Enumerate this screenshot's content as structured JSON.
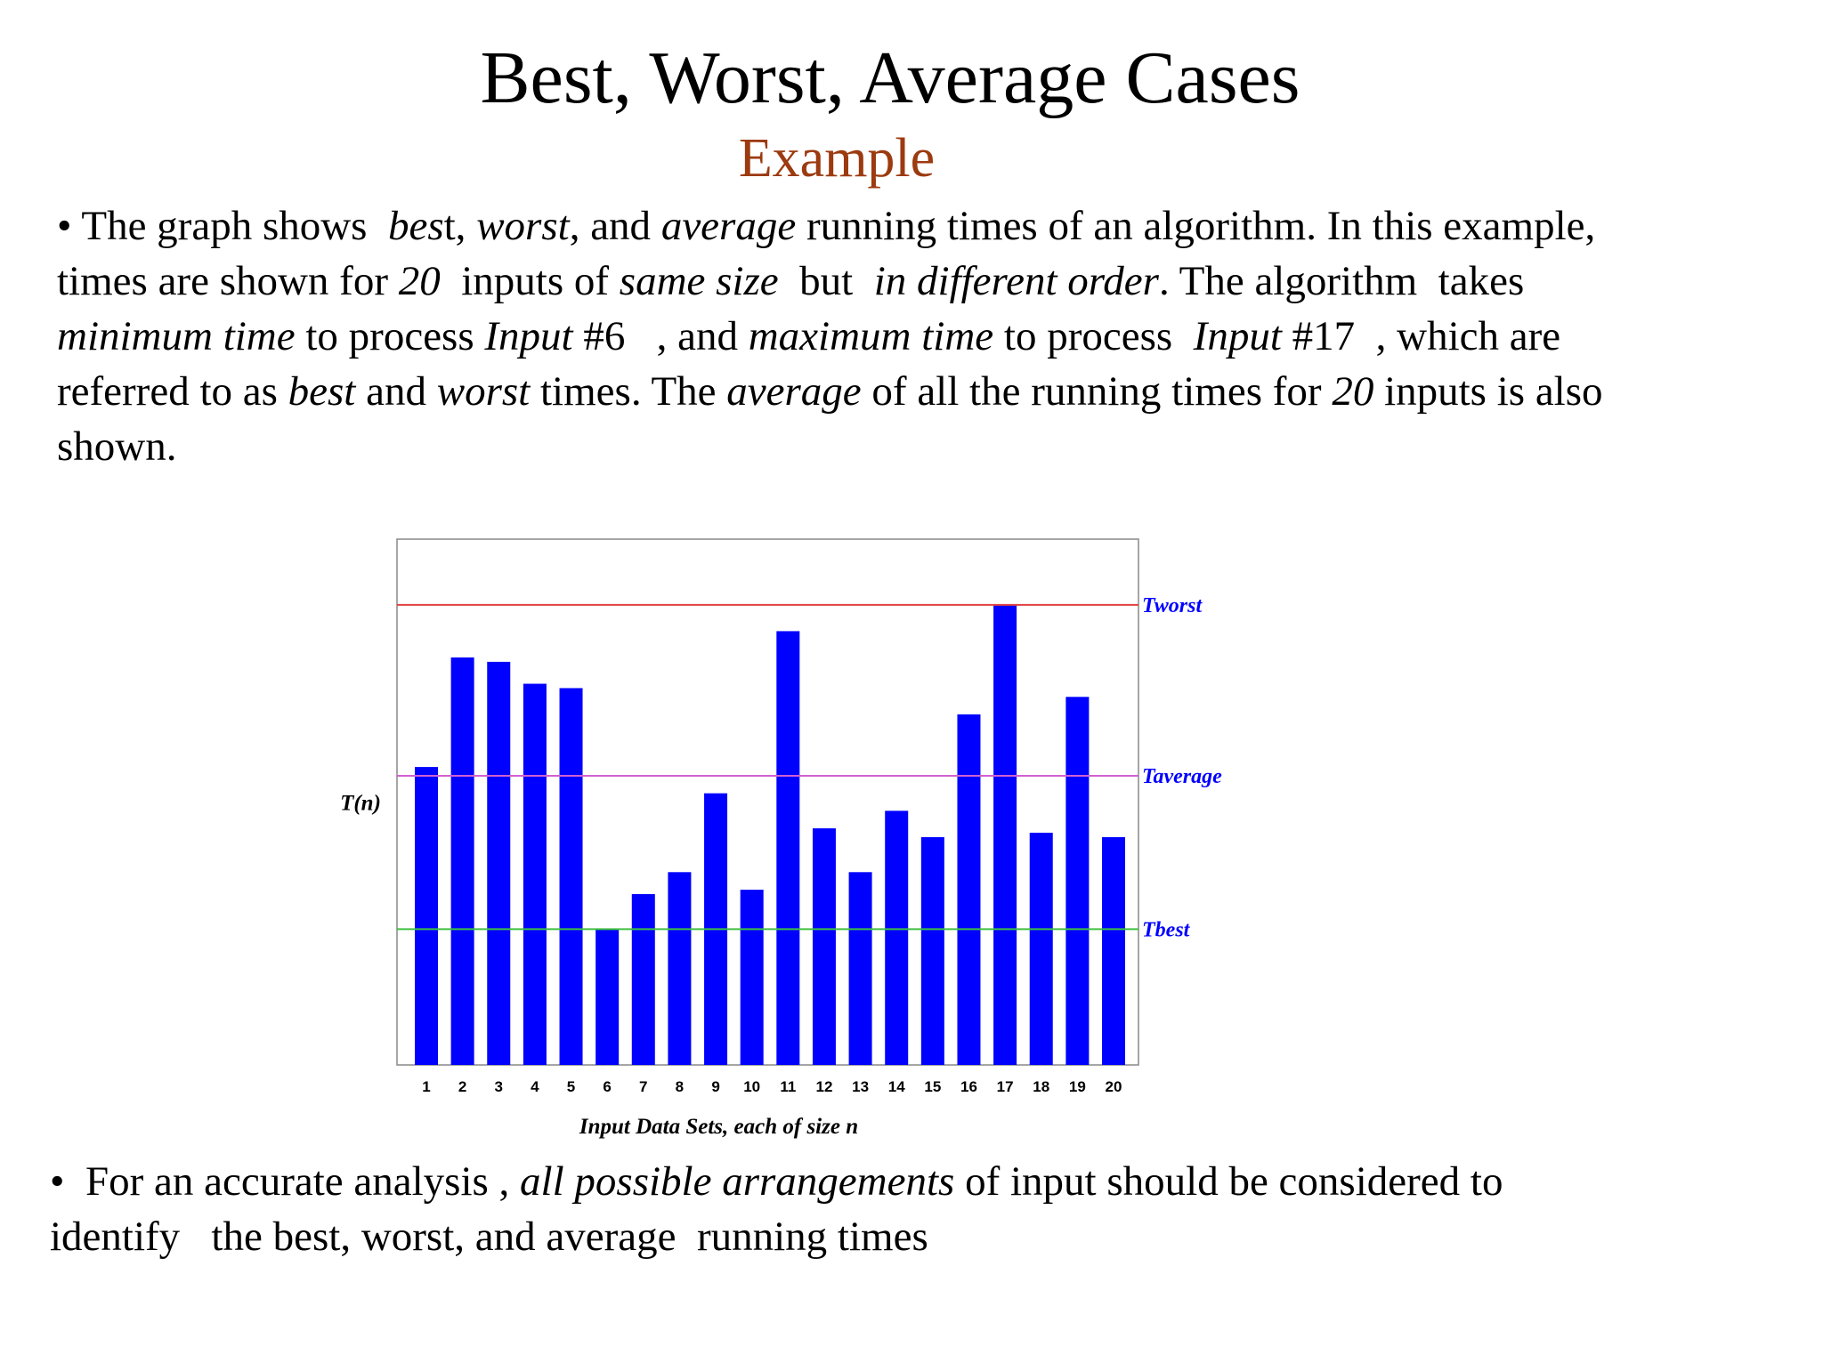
{
  "slide": {
    "title": "Best, Worst, Average Cases",
    "subtitle": "Example",
    "subtitle_color": "#9c3a10"
  },
  "paragraph1": {
    "lines": [
      [
        {
          "t": "• The graph shows  ",
          "i": false
        },
        {
          "t": "bes",
          "i": true
        },
        {
          "t": "t, ",
          "i": false
        },
        {
          "t": "worst",
          "i": true
        },
        {
          "t": ", and ",
          "i": false
        },
        {
          "t": "average",
          "i": true
        },
        {
          "t": " running times of an algorithm. In this example,",
          "i": false
        }
      ],
      [
        {
          "t": "times are shown for ",
          "i": false
        },
        {
          "t": "20",
          "i": true
        },
        {
          "t": "  inputs of ",
          "i": false
        },
        {
          "t": "same size",
          "i": true
        },
        {
          "t": "  but  ",
          "i": false
        },
        {
          "t": "in different order",
          "i": true
        },
        {
          "t": ". The algorithm  takes",
          "i": false
        }
      ],
      [
        {
          "t": "minimum time",
          "i": true
        },
        {
          "t": " to process ",
          "i": false
        },
        {
          "t": "Input",
          "i": true
        },
        {
          "t": " #6   , and ",
          "i": false
        },
        {
          "t": "maximum time",
          "i": true
        },
        {
          "t": " to process  ",
          "i": false
        },
        {
          "t": "Input",
          "i": true
        },
        {
          "t": " #17  , which are",
          "i": false
        }
      ],
      [
        {
          "t": "referred to as ",
          "i": false
        },
        {
          "t": "best",
          "i": true
        },
        {
          "t": " and ",
          "i": false
        },
        {
          "t": "worst",
          "i": true
        },
        {
          "t": " times. The ",
          "i": false
        },
        {
          "t": "average",
          "i": true
        },
        {
          "t": " of all the running times for ",
          "i": false
        },
        {
          "t": "20",
          "i": true
        },
        {
          "t": " inputs is also",
          "i": false
        }
      ],
      [
        {
          "t": "shown.",
          "i": false
        }
      ]
    ]
  },
  "paragraph2": {
    "lines": [
      [
        {
          "t": "•  For an accurate analysis , ",
          "i": false
        },
        {
          "t": "all possible arrangements",
          "i": true
        },
        {
          "t": " of input should be considered to",
          "i": false
        }
      ],
      [
        {
          "t": "identify   the best, worst, and average  running times",
          "i": false
        }
      ]
    ]
  },
  "chart_data": {
    "type": "bar",
    "categories": [
      "1",
      "2",
      "3",
      "4",
      "5",
      "6",
      "7",
      "8",
      "9",
      "10",
      "11",
      "12",
      "13",
      "14",
      "15",
      "16",
      "17",
      "18",
      "19",
      "20"
    ],
    "values": [
      68,
      93,
      92,
      87,
      86,
      31,
      39,
      44,
      62,
      40,
      99,
      54,
      44,
      58,
      52,
      80,
      105,
      53,
      84,
      52
    ],
    "ylim": [
      0,
      120
    ],
    "ylabel": "T(n)",
    "xlabel": "Input Data Sets, each of size n",
    "grid": false,
    "bar_color": "#0000ff",
    "reference_lines": [
      {
        "label": "Tworst",
        "value": 105,
        "color": "#e04040"
      },
      {
        "label": "Taverage",
        "value": 66,
        "color": "#d060d0"
      },
      {
        "label": "Tbest",
        "value": 31,
        "color": "#40c040"
      }
    ],
    "reference_label_color": "#0000ff"
  }
}
